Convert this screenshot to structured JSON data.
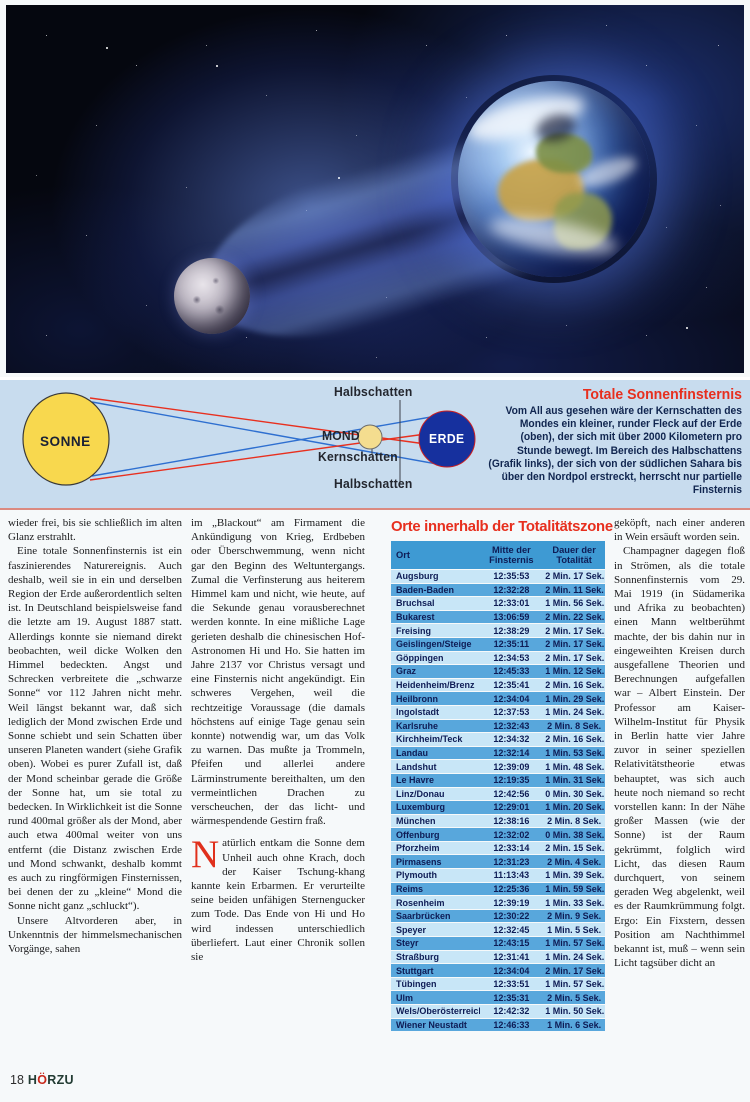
{
  "diagram": {
    "labels": {
      "sun": "SONNE",
      "moon": "MOND",
      "earth": "ERDE",
      "penumbra_top": "Halbschatten",
      "umbra": "Kernschatten",
      "penumbra_bottom": "Halbschatten"
    },
    "callout": {
      "title": "Totale Sonnenfinsternis",
      "body": "Vom All aus gesehen wäre der Kernschatten des Mondes ein kleiner, runder Fleck auf der Erde (oben), der sich mit über 2000 Kilometern pro Stunde bewegt. Im Bereich des Halbschattens (Grafik links), der sich von der südlichen Sahara bis über den Nordpol erstreckt, herrscht nur partielle Finsternis"
    },
    "colors": {
      "sun": "#f8d84e",
      "earth": "#16309e",
      "ray_red": "#e8301f",
      "ray_blue": "#2e6fd0",
      "background": "#c8dcee",
      "accent_red": "#e72f1e"
    }
  },
  "article": {
    "column1": {
      "p1": "wieder frei, bis sie schließlich im alten Glanz erstrahlt.",
      "p2": "Eine totale Sonnenfinsternis ist ein faszinierendes Naturereignis. Auch deshalb, weil sie in ein und derselben Region der Erde außerordentlich selten ist. In Deutschland beispielsweise fand die letzte am 19. August 1887 statt. Allerdings konnte sie niemand direkt beobachten, weil dicke Wolken den Himmel bedeckten. Angst und Schrecken verbreitete die „schwarze Sonne“ vor 112 Jahren nicht mehr. Weil längst bekannt war, daß sich lediglich der Mond zwischen Erde und Sonne schiebt und sein Schatten über unseren Planeten wandert (siehe Grafik oben). Wobei es purer Zufall ist, daß der Mond scheinbar gerade die Größe der Sonne hat, um sie total zu bedecken. In Wirklichkeit ist die Sonne rund 400mal größer als der Mond, aber auch etwa 400mal weiter von uns entfernt (die Distanz zwischen Erde und Mond schwankt, deshalb kommt es auch zu ringförmigen Finsternissen, bei denen der zu „kleine“ Mond die Sonne nicht ganz „schluckt“).",
      "p3": "Unsere Altvorderen aber, in Unkenntnis der himmelsmechanischen Vorgänge, sahen"
    },
    "column2": {
      "p1": "im „Blackout“ am Firmament die Ankündigung von Krieg, Erdbeben oder Überschwemmung, wenn nicht gar den Beginn des Weltuntergangs. Zumal die Verfinsterung aus heiterem Himmel kam und nicht, wie heute, auf die Sekunde genau vorausberechnet werden konnte. In eine mißliche Lage gerieten deshalb die chinesischen Hof-Astronomen Hi und Ho. Sie hatten im Jahre 2137 vor Christus versagt und eine Finsternis nicht angekündigt. Ein schweres Vergehen, weil die rechtzeitige Voraussage (die damals höchstens auf einige Tage genau sein konnte) notwendig war, um das Volk zu warnen. Das mußte ja Trommeln, Pfeifen und allerlei andere Lärminstrumente bereithalten, um den vermeintlichen Drachen zu verscheuchen, der das licht- und wärmespendende Gestirn fraß.",
      "p2_initial": "N",
      "p2_rest": "atürlich entkam die Sonne dem Unheil auch ohne Krach, doch der Kaiser Tschung-khang kannte kein Erbarmen. Er verurteilte seine beiden unfähigen Sternengucker zum Tode. Das Ende von Hi und Ho wird indessen unterschiedlich überliefert. Laut einer Chronik sollen sie"
    },
    "column3": {
      "p1": "geköpft, nach einer anderen in Wein ersäuft worden sein.",
      "p2": "Champagner dagegen floß in Strömen, als die totale Sonnenfinsternis vom 29. Mai 1919 (in Südamerika und Afrika zu beobachten) einen Mann weltberühmt machte, der bis dahin nur in eingeweihten Kreisen durch ausgefallene Theorien und Berechnungen aufgefallen war – Albert Einstein. Der Professor am Kaiser-Wilhelm-Institut für Physik in Berlin hatte vier Jahre zuvor in seiner speziellen Relativitätstheorie etwas behauptet, was sich auch heute noch niemand so recht vorstellen kann: In der Nähe großer Massen (wie der Sonne) ist der Raum gekrümmt, folglich wird Licht, das diesen Raum durchquert, von seinem geraden Weg abgelenkt, weil es der Raumkrümmung folgt. Ergo: Ein Fixstern, dessen Position am Nachthimmel bekannt ist, muß – wenn sein Licht tagsüber dicht an"
    }
  },
  "table": {
    "title": "Orte innerhalb der Totalitätszone",
    "columns": [
      "Ort",
      "Mitte der Finsternis",
      "Dauer der Totalität"
    ],
    "rows": [
      [
        "Augsburg",
        "12:35:53",
        "2 Min. 17 Sek."
      ],
      [
        "Baden-Baden",
        "12:32:28",
        "2 Min. 11 Sek."
      ],
      [
        "Bruchsal",
        "12:33:01",
        "1 Min. 56 Sek."
      ],
      [
        "Bukarest",
        "13:06:59",
        "2 Min. 22 Sek."
      ],
      [
        "Freising",
        "12:38:29",
        "2 Min. 17 Sek."
      ],
      [
        "Geislingen/Steige",
        "12:35:11",
        "2 Min. 17 Sek."
      ],
      [
        "Göppingen",
        "12:34:53",
        "2 Min. 17 Sek."
      ],
      [
        "Graz",
        "12:45:33",
        "1 Min. 12 Sek."
      ],
      [
        "Heidenheim/Brenz",
        "12:35:41",
        "2 Min. 16 Sek."
      ],
      [
        "Heilbronn",
        "12:34:04",
        "1 Min. 29 Sek."
      ],
      [
        "Ingolstadt",
        "12:37:53",
        "1 Min. 24 Sek."
      ],
      [
        "Karlsruhe",
        "12:32:43",
        "2 Min. 8 Sek."
      ],
      [
        "Kirchheim/Teck",
        "12:34:32",
        "2 Min. 16 Sek."
      ],
      [
        "Landau",
        "12:32:14",
        "1 Min. 53 Sek."
      ],
      [
        "Landshut",
        "12:39:09",
        "1 Min. 48 Sek."
      ],
      [
        "Le Havre",
        "12:19:35",
        "1 Min. 31 Sek."
      ],
      [
        "Linz/Donau",
        "12:42:56",
        "0 Min. 30 Sek."
      ],
      [
        "Luxemburg",
        "12:29:01",
        "1 Min. 20 Sek."
      ],
      [
        "München",
        "12:38:16",
        "2 Min. 8 Sek."
      ],
      [
        "Offenburg",
        "12:32:02",
        "0 Min. 38 Sek."
      ],
      [
        "Pforzheim",
        "12:33:14",
        "2 Min. 15 Sek."
      ],
      [
        "Pirmasens",
        "12:31:23",
        "2 Min. 4 Sek."
      ],
      [
        "Plymouth",
        "11:13:43",
        "1 Min. 39 Sek."
      ],
      [
        "Reims",
        "12:25:36",
        "1 Min. 59 Sek."
      ],
      [
        "Rosenheim",
        "12:39:19",
        "1 Min. 33 Sek."
      ],
      [
        "Saarbrücken",
        "12:30:22",
        "2 Min. 9 Sek."
      ],
      [
        "Speyer",
        "12:32:45",
        "1 Min. 5 Sek."
      ],
      [
        "Steyr",
        "12:43:15",
        "1 Min. 57 Sek."
      ],
      [
        "Straßburg",
        "12:31:41",
        "1 Min. 24 Sek."
      ],
      [
        "Stuttgart",
        "12:34:04",
        "2 Min. 17 Sek."
      ],
      [
        "Tübingen",
        "12:33:51",
        "1 Min. 57 Sek."
      ],
      [
        "Ulm",
        "12:35:31",
        "2 Min. 5 Sek."
      ],
      [
        "Wels/Oberösterreich",
        "12:42:32",
        "1 Min. 50 Sek."
      ],
      [
        "Wiener Neustadt",
        "12:46:33",
        "1 Min. 6 Sek."
      ]
    ]
  },
  "footer": {
    "page_number": "18",
    "magazine_pre": "H",
    "magazine_o": "Ö",
    "magazine_post": "RZU"
  }
}
